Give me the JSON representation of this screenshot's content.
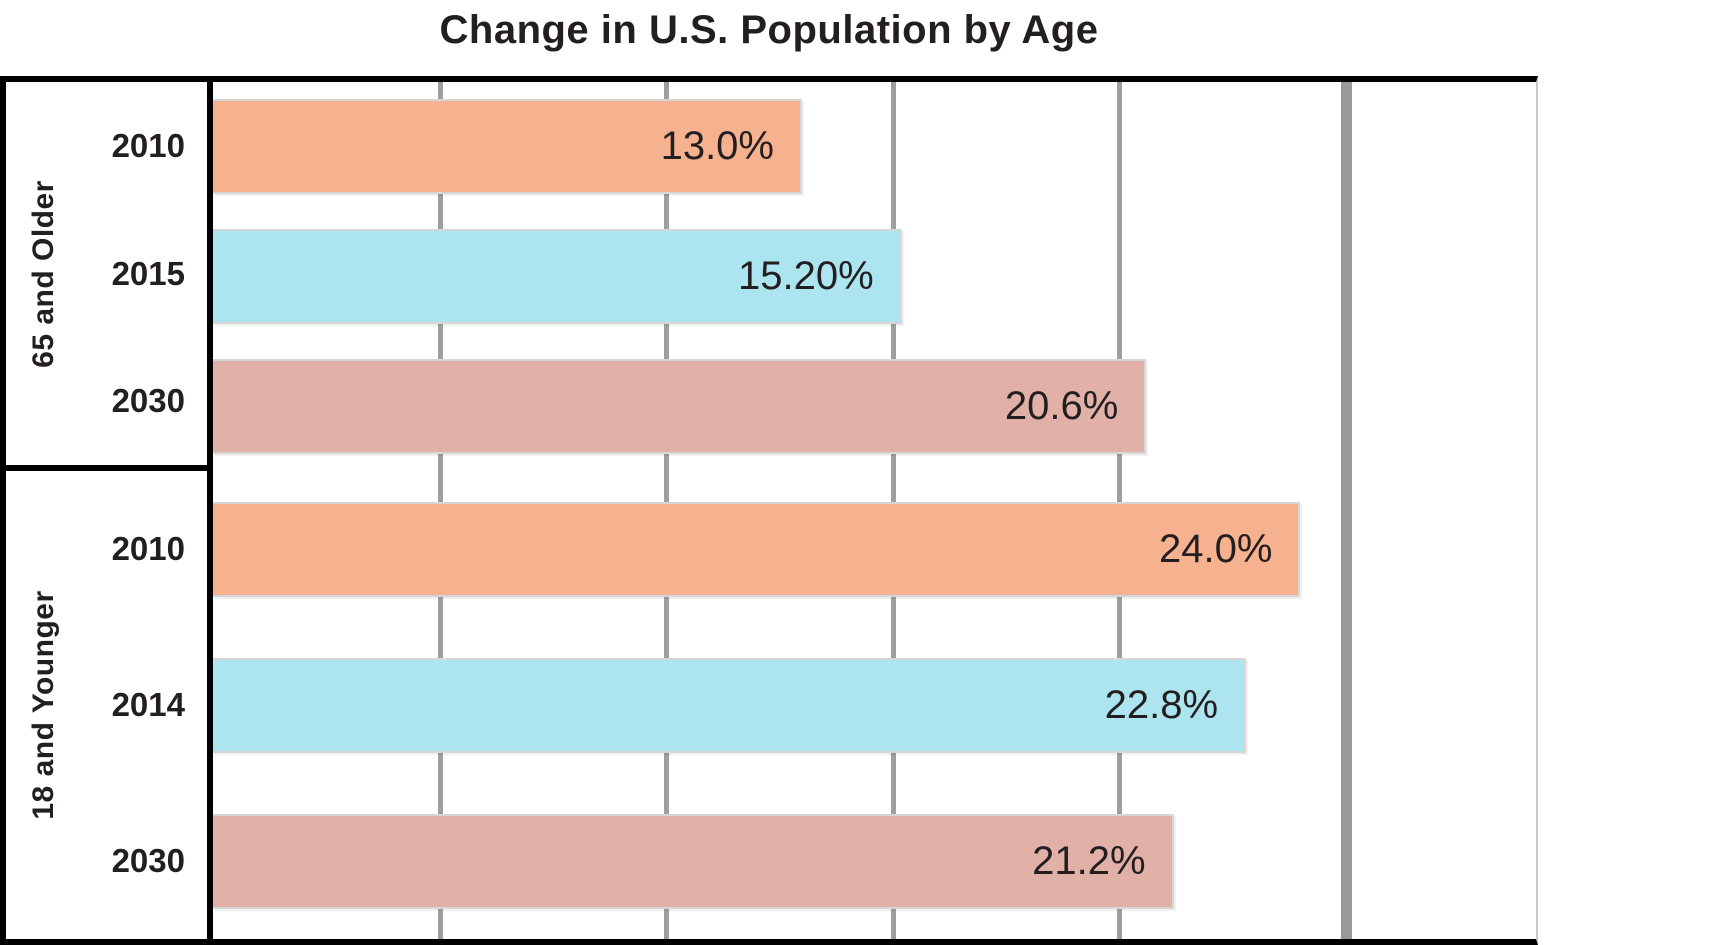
{
  "chart_data": {
    "type": "bar",
    "orientation": "horizontal",
    "title": "Change in U.S. Population by Age",
    "x_axis": {
      "min": 0,
      "max": 29.2,
      "unit": "percent",
      "tick_labels_visible": false,
      "gridlines": [
        5,
        10,
        15,
        20,
        25
      ],
      "emphasized_gridline": 25
    },
    "grid_on": true,
    "legend_position": "none",
    "groups": [
      {
        "label": "65 and Older",
        "bars": [
          {
            "year": "2010",
            "value": 13.0,
            "value_label": "13.0%",
            "color": "#f6b28f"
          },
          {
            "year": "2015",
            "value": 15.2,
            "value_label": "15.20%",
            "color": "#ace5ef"
          },
          {
            "year": "2030",
            "value": 20.6,
            "value_label": "20.6%",
            "color": "#e1b1a7"
          }
        ]
      },
      {
        "label": "18 and Younger",
        "bars": [
          {
            "year": "2010",
            "value": 24.0,
            "value_label": "24.0%",
            "color": "#f6b28f"
          },
          {
            "year": "2014",
            "value": 22.8,
            "value_label": "22.8%",
            "color": "#ace5ef"
          },
          {
            "year": "2030",
            "value": 21.2,
            "value_label": "21.2%",
            "color": "#e1b1a7"
          }
        ]
      }
    ],
    "colors": {
      "grid": "#9e9e9e",
      "axis": "#000000",
      "text": "#231f20",
      "background": "#ffffff"
    }
  }
}
